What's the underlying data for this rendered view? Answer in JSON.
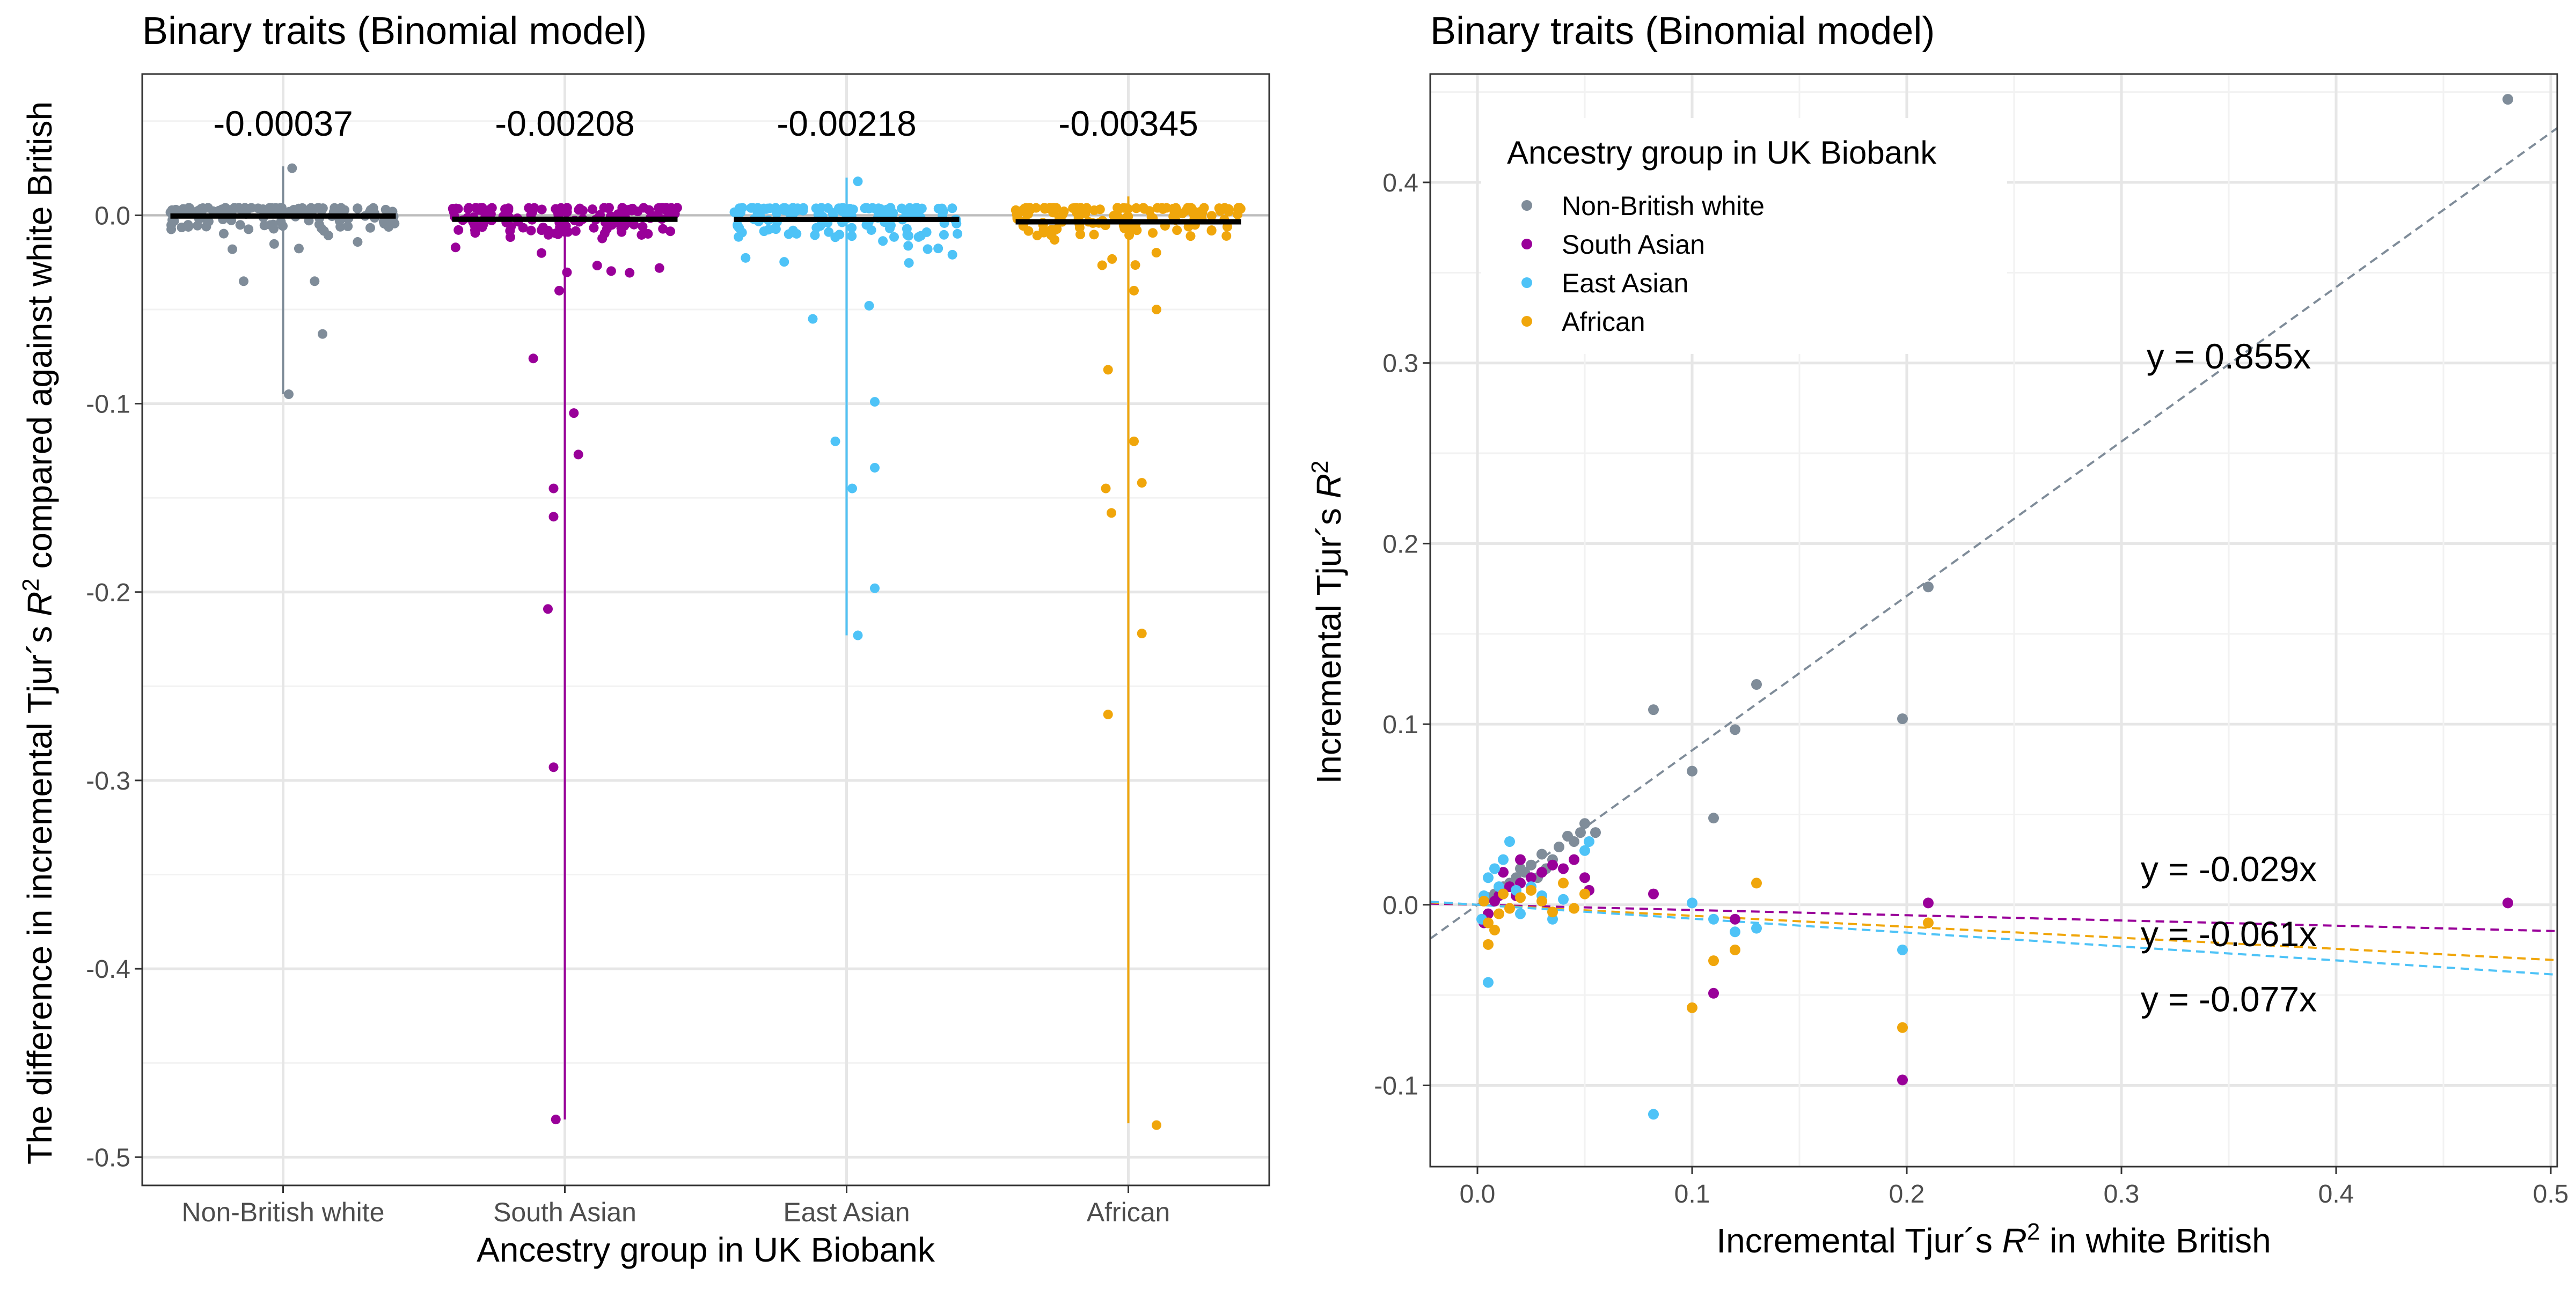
{
  "colors": {
    "Non-British white": "#7f8c99",
    "South Asian": "#990099",
    "East Asian": "#4ec3f7",
    "African": "#f0a60b"
  },
  "left_panel": {
    "title": "Binary traits (Binomial model)",
    "xlabel": "Ancestry group in UK Biobank",
    "ylabel_pre": "The difference in incremental Tjur´s ",
    "ylabel_R": "R",
    "ylabel_sup": "2",
    "ylabel_post": " compared against white British"
  },
  "right_panel": {
    "title": "Binary traits (Binomial model)",
    "xlabel_pre": "Incremental Tjur´s ",
    "xlabel_R": "R",
    "xlabel_sup": "2",
    "xlabel_post": " in white British",
    "ylabel_pre": "Incremental Tjur´s ",
    "ylabel_R": "R",
    "ylabel_sup": "2",
    "legend_title": "Ancestry group in UK Biobank"
  },
  "chart_data": [
    {
      "type": "scatter",
      "subtype": "jitter-strip",
      "title": "Binary traits (Binomial model)",
      "xlabel": "Ancestry group in UK Biobank",
      "ylabel": "The difference in incremental Tjur´s R2 compared against white British",
      "categories": [
        "Non-British white",
        "South Asian",
        "East Asian",
        "African"
      ],
      "ylim": [
        -0.515,
        0.075
      ],
      "yticks": [
        0.0,
        -0.1,
        -0.2,
        -0.3,
        -0.4,
        -0.5
      ],
      "ytick_labels": [
        "0.0",
        "-0.1",
        "-0.2",
        "-0.3",
        "-0.4",
        "-0.5"
      ],
      "grid": true,
      "hline": 0,
      "group_means": [
        -0.00037,
        -0.00208,
        -0.00218,
        -0.00345
      ],
      "mean_labels": [
        "-0.00037",
        "-0.00208",
        "-0.00218",
        "-0.00345"
      ],
      "ranges": [
        [
          -0.095,
          0.026
        ],
        [
          -0.48,
          0.006
        ],
        [
          -0.223,
          0.02
        ],
        [
          -0.482,
          0.01
        ]
      ],
      "outliers": [
        {
          "group": "Non-British white",
          "points": [
            [
              0.05,
              -0.095
            ],
            [
              -0.35,
              -0.035
            ],
            [
              0.28,
              -0.035
            ],
            [
              0.35,
              -0.063
            ],
            [
              -0.45,
              -0.018
            ],
            [
              0.08,
              0.025
            ]
          ]
        },
        {
          "group": "South Asian",
          "points": [
            [
              -0.28,
              -0.076
            ],
            [
              0.08,
              -0.105
            ],
            [
              -0.1,
              -0.145
            ],
            [
              0.12,
              -0.127
            ],
            [
              -0.1,
              -0.16
            ],
            [
              -0.15,
              -0.209
            ],
            [
              -0.1,
              -0.293
            ],
            [
              -0.08,
              -0.48
            ],
            [
              -0.05,
              -0.04
            ]
          ]
        },
        {
          "group": "East Asian",
          "points": [
            [
              -0.1,
              -0.12
            ],
            [
              0.05,
              -0.145
            ],
            [
              0.25,
              -0.134
            ],
            [
              0.25,
              -0.198
            ],
            [
              0.1,
              -0.223
            ],
            [
              0.25,
              -0.099
            ],
            [
              -0.3,
              -0.055
            ],
            [
              0.2,
              -0.048
            ],
            [
              0.1,
              0.018
            ]
          ]
        },
        {
          "group": "African",
          "points": [
            [
              -0.18,
              -0.082
            ],
            [
              0.05,
              -0.12
            ],
            [
              -0.2,
              -0.145
            ],
            [
              0.12,
              -0.222
            ],
            [
              -0.15,
              -0.158
            ],
            [
              0.12,
              -0.142
            ],
            [
              -0.18,
              -0.265
            ],
            [
              0.25,
              -0.483
            ],
            [
              0.25,
              -0.05
            ],
            [
              0.05,
              -0.04
            ]
          ]
        }
      ]
    },
    {
      "type": "scatter",
      "title": "Binary traits (Binomial model)",
      "xlabel": "Incremental Tjur´s R2 in white British",
      "ylabel": "Incremental Tjur´s R2",
      "xlim": [
        -0.022,
        0.503
      ],
      "ylim": [
        -0.145,
        0.46
      ],
      "xticks": [
        0.0,
        0.1,
        0.2,
        0.3,
        0.4,
        0.5
      ],
      "xtick_labels": [
        "0.0",
        "0.1",
        "0.2",
        "0.3",
        "0.4",
        "0.5"
      ],
      "yticks": [
        -0.1,
        0.0,
        0.1,
        0.2,
        0.3,
        0.4
      ],
      "ytick_labels": [
        "-0.1",
        "0.0",
        "0.1",
        "0.2",
        "0.3",
        "0.4"
      ],
      "grid": true,
      "legend": {
        "title": "Ancestry group in UK Biobank",
        "entries": [
          "Non-British white",
          "South Asian",
          "East Asian",
          "African"
        ],
        "position": "top-left"
      },
      "fit_lines": [
        {
          "group": "Non-British white",
          "slope": 0.855,
          "label": "y = 0.855x",
          "label_at": [
            0.35,
            0.297
          ]
        },
        {
          "group": "South Asian",
          "slope": -0.029,
          "label": "y = -0.029x",
          "label_at": [
            0.35,
            0.013
          ]
        },
        {
          "group": "African",
          "slope": -0.061,
          "label": "y = -0.061x",
          "label_at": [
            0.35,
            -0.023
          ]
        },
        {
          "group": "East Asian",
          "slope": -0.077,
          "label": "y = -0.077x",
          "label_at": [
            0.35,
            -0.059
          ]
        }
      ],
      "series": [
        {
          "name": "Non-British white",
          "points": [
            [
              0.48,
              0.446
            ],
            [
              0.21,
              0.176
            ],
            [
              0.198,
              0.103
            ],
            [
              0.13,
              0.122
            ],
            [
              0.12,
              0.097
            ],
            [
              0.11,
              0.048
            ],
            [
              0.1,
              0.074
            ],
            [
              0.082,
              0.108
            ],
            [
              0.05,
              0.045
            ],
            [
              0.048,
              0.04
            ],
            [
              0.042,
              0.038
            ],
            [
              0.038,
              0.032
            ],
            [
              0.035,
              0.025
            ],
            [
              0.03,
              0.028
            ],
            [
              0.025,
              0.022
            ],
            [
              0.022,
              0.018
            ],
            [
              0.02,
              0.02
            ],
            [
              0.018,
              0.015
            ],
            [
              0.015,
              0.012
            ],
            [
              0.012,
              0.01
            ],
            [
              0.01,
              0.008
            ],
            [
              0.008,
              0.006
            ],
            [
              0.005,
              0.004
            ],
            [
              0.003,
              0.002
            ],
            [
              0.028,
              0.015
            ],
            [
              0.032,
              0.02
            ],
            [
              0.045,
              0.035
            ],
            [
              0.055,
              0.04
            ]
          ]
        },
        {
          "name": "South Asian",
          "points": [
            [
              0.48,
              0.001
            ],
            [
              0.21,
              0.001
            ],
            [
              0.198,
              -0.097
            ],
            [
              0.11,
              -0.049
            ],
            [
              0.12,
              -0.008
            ],
            [
              0.082,
              0.006
            ],
            [
              0.05,
              0.015
            ],
            [
              0.052,
              0.008
            ],
            [
              0.04,
              0.02
            ],
            [
              0.035,
              0.022
            ],
            [
              0.03,
              0.018
            ],
            [
              0.025,
              0.015
            ],
            [
              0.02,
              0.012
            ],
            [
              0.015,
              0.01
            ],
            [
              0.01,
              0.005
            ],
            [
              0.005,
              -0.005
            ],
            [
              0.003,
              -0.01
            ],
            [
              0.045,
              0.025
            ],
            [
              0.02,
              0.025
            ],
            [
              0.008,
              0.002
            ],
            [
              0.012,
              0.018
            ],
            [
              0.018,
              0.005
            ]
          ]
        },
        {
          "name": "East Asian",
          "points": [
            [
              0.082,
              -0.116
            ],
            [
              0.198,
              -0.025
            ],
            [
              0.1,
              0.001
            ],
            [
              0.12,
              -0.015
            ],
            [
              0.13,
              -0.013
            ],
            [
              0.11,
              -0.008
            ],
            [
              0.005,
              -0.043
            ],
            [
              0.05,
              0.03
            ],
            [
              0.052,
              0.035
            ],
            [
              0.03,
              0.005
            ],
            [
              0.025,
              0.01
            ],
            [
              0.015,
              0.035
            ],
            [
              0.01,
              0.01
            ],
            [
              0.008,
              0.02
            ],
            [
              0.005,
              0.015
            ],
            [
              0.003,
              0.005
            ],
            [
              0.02,
              -0.005
            ],
            [
              0.04,
              0.003
            ],
            [
              0.035,
              -0.008
            ],
            [
              0.012,
              0.025
            ],
            [
              0.018,
              0.008
            ],
            [
              0.002,
              -0.008
            ]
          ]
        },
        {
          "name": "African",
          "points": [
            [
              0.198,
              -0.068
            ],
            [
              0.1,
              -0.057
            ],
            [
              0.12,
              -0.025
            ],
            [
              0.11,
              -0.031
            ],
            [
              0.13,
              0.012
            ],
            [
              0.21,
              -0.01
            ],
            [
              0.005,
              -0.022
            ],
            [
              0.05,
              0.006
            ],
            [
              0.04,
              0.012
            ],
            [
              0.03,
              0.002
            ],
            [
              0.02,
              0.004
            ],
            [
              0.015,
              -0.002
            ],
            [
              0.01,
              -0.005
            ],
            [
              0.005,
              -0.01
            ],
            [
              0.003,
              0.002
            ],
            [
              0.025,
              0.008
            ],
            [
              0.035,
              -0.004
            ],
            [
              0.012,
              0.006
            ],
            [
              0.008,
              -0.014
            ],
            [
              0.045,
              -0.002
            ]
          ]
        }
      ]
    }
  ]
}
